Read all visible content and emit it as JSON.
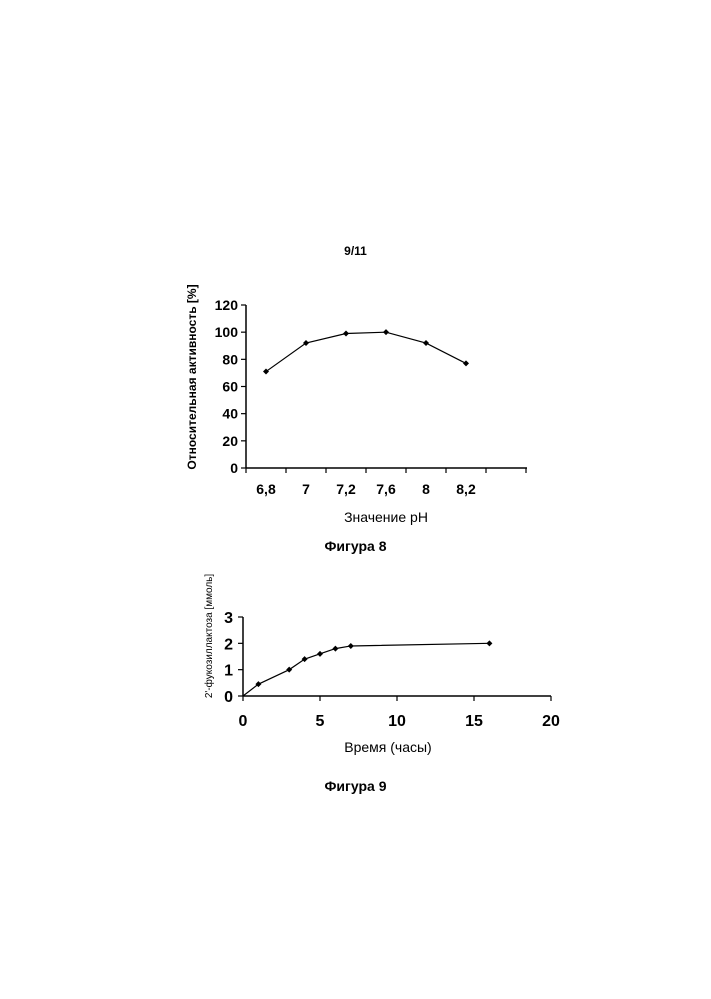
{
  "page": {
    "number": "9/11"
  },
  "chart_data": [
    {
      "type": "line",
      "caption": "Фигура 8",
      "xlabel": "Значение pH",
      "ylabel": "Относительная активность [%]",
      "categories": [
        "6,8",
        "7",
        "7,2",
        "7,6",
        "8",
        "8,2"
      ],
      "values": [
        71,
        92,
        99,
        100,
        92,
        77
      ],
      "ylim": [
        0,
        120
      ],
      "yticks": [
        0,
        20,
        40,
        60,
        80,
        100,
        120
      ],
      "grid": false,
      "line_color": "#000000"
    },
    {
      "type": "line",
      "caption": "Фигура 9",
      "xlabel": "Время (часы)",
      "ylabel": "2'-фукозиллактоза [ммоль]",
      "x": [
        0,
        1,
        3,
        4,
        5,
        6,
        7,
        16
      ],
      "y": [
        0,
        0.45,
        1.0,
        1.4,
        1.6,
        1.8,
        1.9,
        2.0
      ],
      "xlim": [
        0,
        20
      ],
      "ylim": [
        0,
        3
      ],
      "xticks": [
        0,
        5,
        10,
        15,
        20
      ],
      "yticks": [
        0,
        1,
        2,
        3
      ],
      "grid": false,
      "line_color": "#000000"
    }
  ]
}
